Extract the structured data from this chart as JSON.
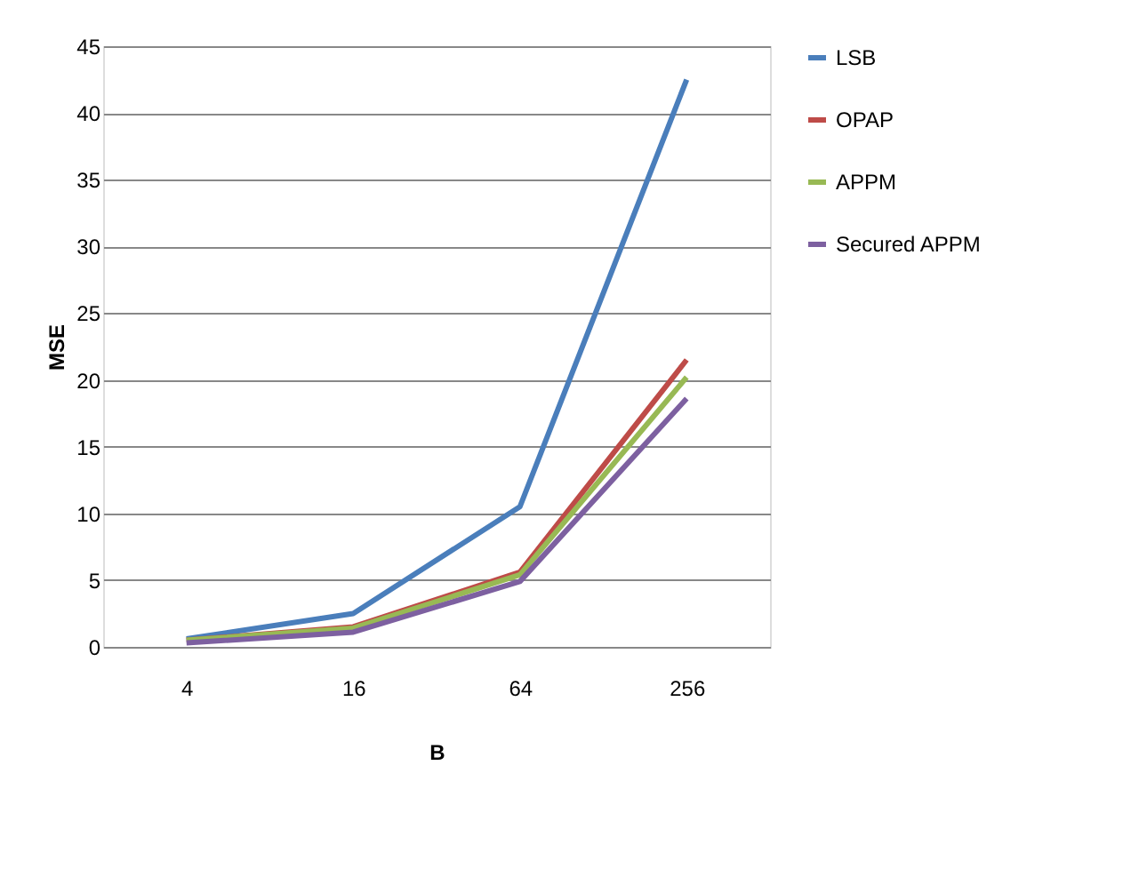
{
  "chart_data": {
    "type": "line",
    "xlabel": "B",
    "ylabel": "MSE",
    "categories": [
      "4",
      "16",
      "64",
      "256"
    ],
    "series": [
      {
        "name": "LSB",
        "color": "#4a7ebb",
        "values": [
          0.6,
          2.5,
          10.5,
          42.5
        ]
      },
      {
        "name": "OPAP",
        "color": "#be4b48",
        "values": [
          0.5,
          1.5,
          5.6,
          21.5
        ]
      },
      {
        "name": "APPM",
        "color": "#98b954",
        "values": [
          0.5,
          1.4,
          5.4,
          20.2
        ]
      },
      {
        "name": "Secured APPM",
        "color": "#7d60a0",
        "values": [
          0.3,
          1.1,
          4.9,
          18.6
        ]
      }
    ],
    "ylim": [
      0,
      45
    ],
    "yticks": [
      0,
      5,
      10,
      15,
      20,
      25,
      30,
      35,
      40,
      45
    ],
    "grid": "y",
    "legend": "right",
    "marker": "none",
    "line_style": "solid"
  }
}
